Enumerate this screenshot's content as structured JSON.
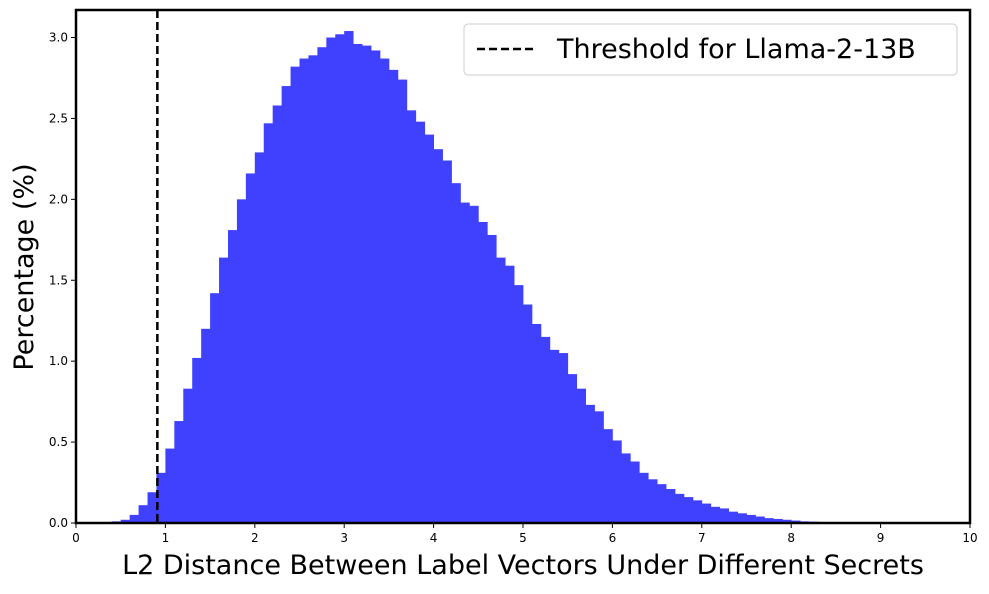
{
  "chart_data": {
    "type": "bar",
    "title": "",
    "xlabel": "L2 Distance Between Label Vectors Under Different Secrets",
    "ylabel": "Percentage (%)",
    "xlim": [
      0,
      10
    ],
    "ylim": [
      0,
      3.17
    ],
    "xticks": [
      "0",
      "1",
      "2",
      "3",
      "4",
      "5",
      "6",
      "7",
      "8",
      "9",
      "10"
    ],
    "yticks": [
      "0.0",
      "0.5",
      "1.0",
      "1.5",
      "2.0",
      "2.5",
      "3.0"
    ],
    "grid": false,
    "legend": {
      "position": "top-right",
      "entries": [
        {
          "label": "Threshold for Llama-2-13B",
          "style": "dashed",
          "color": "#000000"
        }
      ]
    },
    "threshold": {
      "x": 0.91,
      "label": "Threshold for Llama-2-13B"
    },
    "bar_color": "#4040ff",
    "bin_start": 0.0,
    "bin_width": 0.1,
    "values": [
      0,
      0,
      0,
      0,
      0.01,
      0.02,
      0.05,
      0.11,
      0.19,
      0.31,
      0.46,
      0.63,
      0.83,
      1.02,
      1.2,
      1.42,
      1.64,
      1.81,
      2.0,
      2.16,
      2.29,
      2.47,
      2.58,
      2.7,
      2.82,
      2.87,
      2.89,
      2.94,
      3.0,
      3.02,
      3.04,
      2.96,
      2.95,
      2.92,
      2.87,
      2.8,
      2.74,
      2.55,
      2.48,
      2.4,
      2.31,
      2.24,
      2.1,
      1.98,
      1.96,
      1.86,
      1.78,
      1.64,
      1.59,
      1.47,
      1.35,
      1.23,
      1.15,
      1.07,
      1.05,
      0.92,
      0.83,
      0.73,
      0.69,
      0.58,
      0.51,
      0.43,
      0.38,
      0.31,
      0.27,
      0.24,
      0.21,
      0.18,
      0.16,
      0.14,
      0.12,
      0.1,
      0.09,
      0.07,
      0.06,
      0.05,
      0.04,
      0.03,
      0.025,
      0.02,
      0.015,
      0.01,
      0.008,
      0.005,
      0.004,
      0.003,
      0.002,
      0.001,
      0.001,
      0,
      0,
      0,
      0,
      0,
      0,
      0,
      0,
      0,
      0,
      0
    ]
  }
}
